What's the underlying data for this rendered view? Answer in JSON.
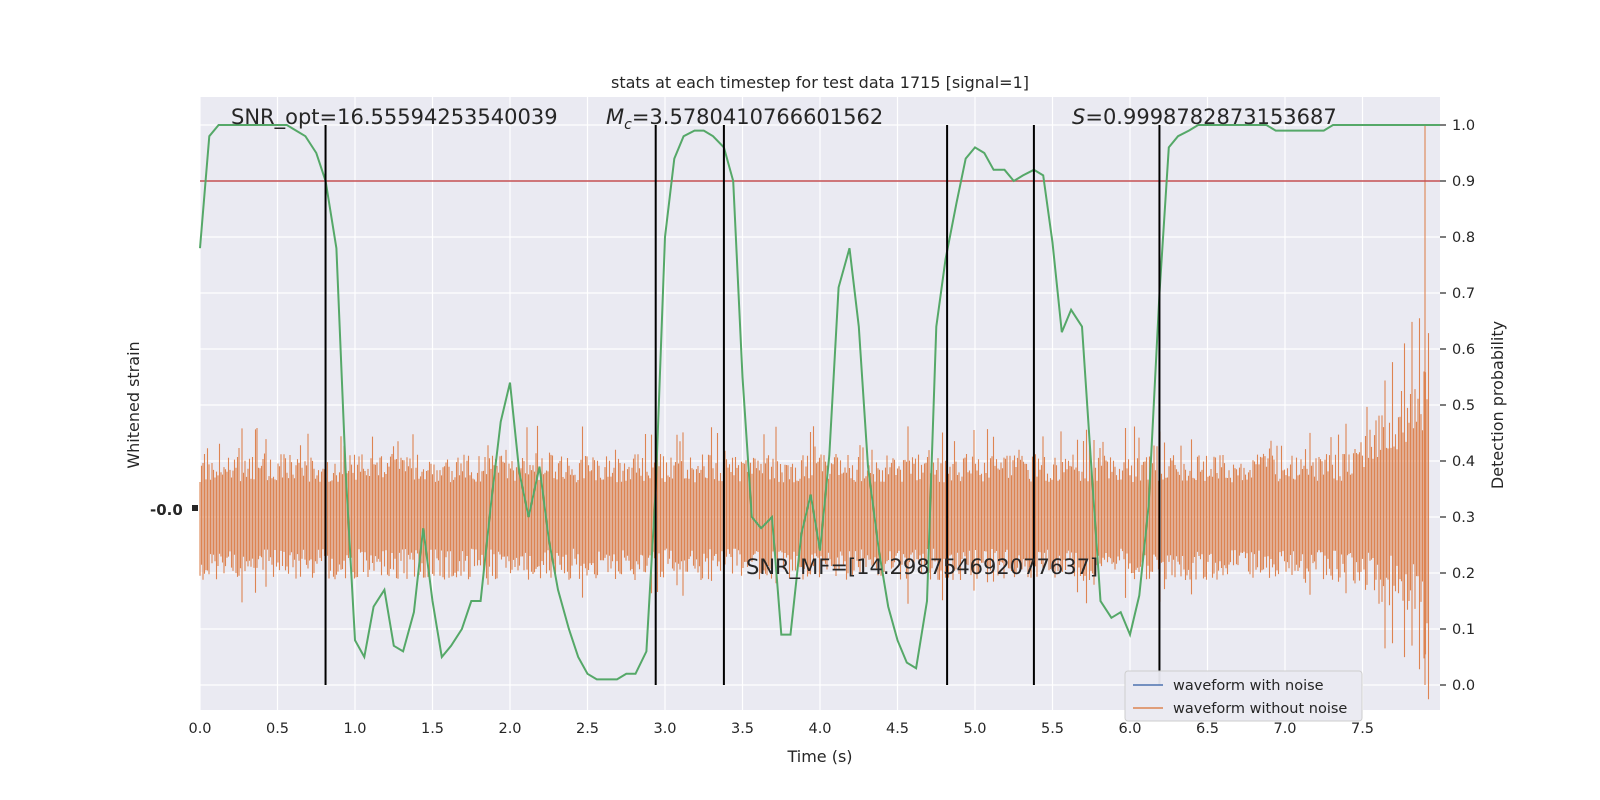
{
  "chart_data": {
    "type": "line",
    "title": "stats at each timestep for test data 1715 [signal=1]",
    "xlabel": "Time (s)",
    "ylabel_left": "Whitened strain",
    "ylabel_right": "Detection probability",
    "xlim": [
      0,
      8.0
    ],
    "ylim_right": [
      -0.05,
      1.05
    ],
    "xticks": [
      "0.0",
      "0.5",
      "1.0",
      "1.5",
      "2.0",
      "2.5",
      "3.0",
      "3.5",
      "4.0",
      "4.5",
      "5.0",
      "5.5",
      "6.0",
      "6.5",
      "7.0",
      "7.5"
    ],
    "yticks_right": [
      "0.0",
      "0.1",
      "0.2",
      "0.3",
      "0.4",
      "0.5",
      "0.6",
      "0.7",
      "0.8",
      "0.9",
      "1.0"
    ],
    "annotations": {
      "snr_opt": "SNR_opt=16.55594253540039",
      "mc_symbol": "M",
      "mc_sub": "c",
      "mc_value": "=3.5780410766601562",
      "s_symbol": "S",
      "s_value": "=0.9998782873153687",
      "snr_mf": "SNR_MF=[14.298754692077637]"
    },
    "threshold": 0.9,
    "vertical_lines_x": [
      0.81,
      2.94,
      3.38,
      4.82,
      5.38,
      6.19
    ],
    "probability_series": {
      "name": "Detection probability",
      "x": [
        0.0,
        0.06,
        0.12,
        0.18,
        0.25,
        0.31,
        0.38,
        0.44,
        0.5,
        0.56,
        0.62,
        0.68,
        0.75,
        0.81,
        0.88,
        0.94,
        1.0,
        1.06,
        1.12,
        1.19,
        1.25,
        1.31,
        1.38,
        1.44,
        1.5,
        1.56,
        1.62,
        1.69,
        1.75,
        1.81,
        1.88,
        1.94,
        2.0,
        2.06,
        2.12,
        2.19,
        2.25,
        2.31,
        2.38,
        2.44,
        2.5,
        2.56,
        2.62,
        2.69,
        2.75,
        2.81,
        2.88,
        2.94,
        3.0,
        3.06,
        3.12,
        3.19,
        3.25,
        3.31,
        3.38,
        3.44,
        3.5,
        3.56,
        3.62,
        3.69,
        3.75,
        3.81,
        3.88,
        3.94,
        4.0,
        4.06,
        4.12,
        4.19,
        4.25,
        4.31,
        4.38,
        4.44,
        4.5,
        4.56,
        4.62,
        4.69,
        4.75,
        4.81,
        4.88,
        4.94,
        5.0,
        5.06,
        5.12,
        5.19,
        5.25,
        5.31,
        5.38,
        5.44,
        5.5,
        5.56,
        5.62,
        5.69,
        5.75,
        5.81,
        5.88,
        5.94,
        6.0,
        6.06,
        6.12,
        6.19,
        6.25,
        6.31,
        6.38,
        6.44,
        6.5,
        6.56,
        6.62,
        6.69,
        6.75,
        6.81,
        6.88,
        6.94,
        7.0,
        7.06,
        7.12,
        7.19,
        7.25,
        7.31,
        7.38,
        7.44,
        7.5,
        7.56,
        7.62,
        7.69,
        7.75,
        7.81,
        7.88,
        7.94,
        8.0
      ],
      "values": [
        0.78,
        0.98,
        1.0,
        1.0,
        1.0,
        1.0,
        1.0,
        1.0,
        1.0,
        1.0,
        0.99,
        0.98,
        0.95,
        0.9,
        0.78,
        0.38,
        0.08,
        0.05,
        0.14,
        0.17,
        0.07,
        0.06,
        0.13,
        0.28,
        0.15,
        0.05,
        0.07,
        0.1,
        0.15,
        0.15,
        0.33,
        0.47,
        0.54,
        0.38,
        0.3,
        0.39,
        0.26,
        0.17,
        0.1,
        0.05,
        0.02,
        0.01,
        0.01,
        0.01,
        0.02,
        0.02,
        0.06,
        0.35,
        0.8,
        0.94,
        0.98,
        0.99,
        0.99,
        0.98,
        0.96,
        0.9,
        0.55,
        0.3,
        0.28,
        0.3,
        0.09,
        0.09,
        0.27,
        0.34,
        0.24,
        0.41,
        0.71,
        0.78,
        0.64,
        0.39,
        0.24,
        0.14,
        0.08,
        0.04,
        0.03,
        0.15,
        0.64,
        0.76,
        0.86,
        0.94,
        0.96,
        0.95,
        0.92,
        0.92,
        0.9,
        0.91,
        0.92,
        0.91,
        0.79,
        0.63,
        0.67,
        0.64,
        0.39,
        0.15,
        0.12,
        0.13,
        0.09,
        0.16,
        0.32,
        0.7,
        0.96,
        0.98,
        0.99,
        1.0,
        1.0,
        1.0,
        1.0,
        1.0,
        1.0,
        1.0,
        1.0,
        0.99,
        0.99,
        0.99,
        0.99,
        0.99,
        0.99,
        1.0,
        1.0,
        1.0,
        1.0,
        1.0,
        1.0,
        1.0,
        1.0,
        1.0,
        1.0,
        1.0,
        1.0
      ]
    },
    "series": [
      {
        "name": "waveform with noise"
      },
      {
        "name": "waveform without noise"
      }
    ],
    "legend_position": "lower right",
    "grid": true,
    "colors": {
      "background": "#EAEAF2",
      "grid": "#FFFFFF",
      "probability": "#55A868",
      "threshold": "#C44E52",
      "with_noise": "#4C72B0",
      "without_noise": "#DD8452",
      "vline": "#000000"
    }
  }
}
